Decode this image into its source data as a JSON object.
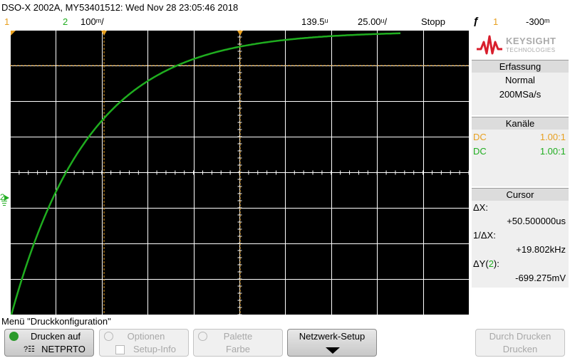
{
  "header": {
    "title": "DSO-X 2002A, MY53401512: Wed Nov 28 23:05:46 2018",
    "ch1_label": "1",
    "ch2_label": "2",
    "ch2_scale": "100ₘᵥ",
    "ch2_scale_text": "100ₘ/",
    "time_pos": "139.5ₘ",
    "time_base": "25.00ₘ/",
    "status": "Stopp",
    "trigger_icon": "ƒ",
    "trigger_channel": "1",
    "trigger_level": "-300ₘ"
  },
  "header_display": {
    "ch2_scale": "100ᵐ/",
    "time_pos": "139.5ᵘ",
    "time_base": "25.00ᵘ/",
    "trigger_level": "-300ᵐ"
  },
  "colors": {
    "ch1": "#e8a020",
    "ch2": "#1fad1f",
    "grid": "#ffffff",
    "background": "#000000"
  },
  "brand": {
    "name": "KEYSIGHT",
    "sub": "TECHNOLOGIES"
  },
  "acquisition": {
    "title": "Erfassung",
    "mode": "Normal",
    "rate": "200MSa/s"
  },
  "channels": {
    "title": "Kanäle",
    "items": [
      {
        "coupling": "DC",
        "ratio": "1.00:1",
        "color": "#e8a020"
      },
      {
        "coupling": "DC",
        "ratio": "1.00:1",
        "color": "#1fad1f"
      }
    ]
  },
  "cursor": {
    "title": "Cursor",
    "dx_label": "ΔX:",
    "dx_value": "+50.500000us",
    "inv_dx_label": "1/ΔX:",
    "inv_dx_value": "+19.802kHz",
    "dy_label_pre": "ΔY(",
    "dy_label_ch": "2",
    "dy_label_post": "):",
    "dy_value": "-699.275mV"
  },
  "ground_marker": "2",
  "menu_title": "Menü \"Druckkonfiguration\"",
  "softkeys": [
    {
      "line1": "Drucken auf",
      "line2": "NETPRTO",
      "enabled": true
    },
    {
      "line1": "Optionen",
      "line2": "Setup-Info",
      "enabled": false
    },
    {
      "line1": "Palette",
      "line2": "Farbe",
      "enabled": false
    },
    {
      "line1": "Netzwerk-Setup",
      "line2": "",
      "enabled": true
    },
    {
      "line1": "Durch Drucken",
      "line2": "Drucken",
      "enabled": false
    }
  ]
}
